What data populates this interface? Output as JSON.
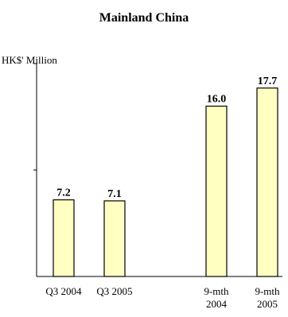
{
  "chart_data": {
    "type": "bar",
    "title": "Mainland China",
    "ylabel": "HK$' Million",
    "categories": [
      [
        "Q3 2004"
      ],
      [
        "Q3 2005"
      ],
      [
        "9-mth",
        "2004"
      ],
      [
        "9-mth",
        "2005"
      ]
    ],
    "values": [
      7.2,
      7.1,
      16.0,
      17.7
    ],
    "value_labels": [
      "7.2",
      "7.1",
      "16.0",
      "17.7"
    ],
    "ylim": [
      0,
      20
    ],
    "y_ticks": [
      10,
      20
    ],
    "grid": false,
    "colors": {
      "bar_fill": "#FFFFC2",
      "bar_stroke": "#000000",
      "axis": "#000000",
      "text": "#000000"
    }
  }
}
